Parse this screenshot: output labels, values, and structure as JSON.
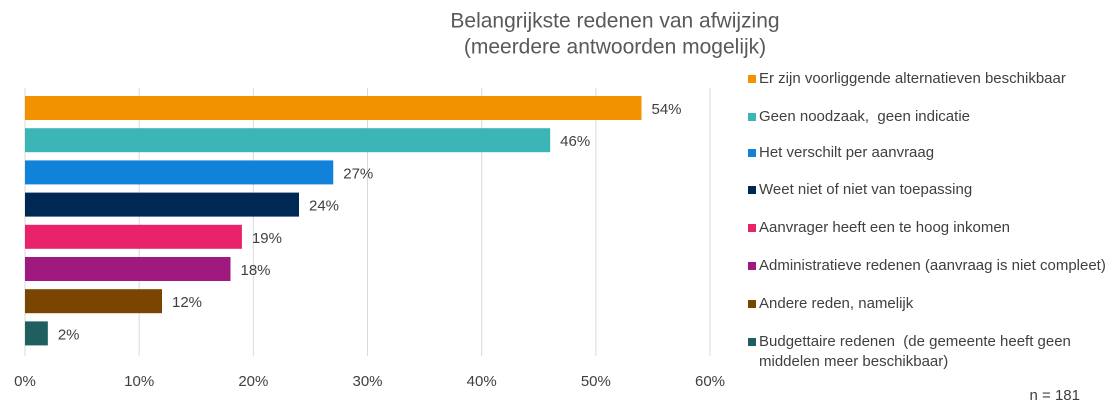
{
  "chart_data": {
    "type": "bar",
    "title": "Belangrijkste redenen van afwijzing",
    "subtitle": "(meerdere antwoorden mogelijk)",
    "categories": [
      "Er zijn voorliggende alternatieven beschikbaar",
      "Geen noodzaak,  geen indicatie",
      "Het verschilt per aanvraag",
      "Weet niet of niet van toepassing",
      "Aanvrager heeft een te hoog inkomen",
      "Administratieve redenen (aanvraag is niet compleet)",
      "Andere reden, namelijk",
      "Budgettaire redenen  (de gemeente heeft geen middelen meer beschikbaar)"
    ],
    "values": [
      54,
      46,
      27,
      24,
      19,
      18,
      12,
      2
    ],
    "value_labels": [
      "54%",
      "46%",
      "27%",
      "24%",
      "19%",
      "18%",
      "12%",
      "2%"
    ],
    "colors": [
      "#f39200",
      "#3bb5b5",
      "#1182d9",
      "#002855",
      "#e8236b",
      "#a0197f",
      "#7a4500",
      "#1f5f5f"
    ],
    "xlim": [
      0,
      60
    ],
    "xticks": [
      {
        "value": 0,
        "label": "0%"
      },
      {
        "value": 10,
        "label": "10%"
      },
      {
        "value": 20,
        "label": "20%"
      },
      {
        "value": 30,
        "label": "30%"
      },
      {
        "value": 40,
        "label": "40%"
      },
      {
        "value": 50,
        "label": "50%"
      },
      {
        "value": 60,
        "label": "60%"
      }
    ],
    "grid": true,
    "legend": "right",
    "annotation": "n = 181"
  }
}
